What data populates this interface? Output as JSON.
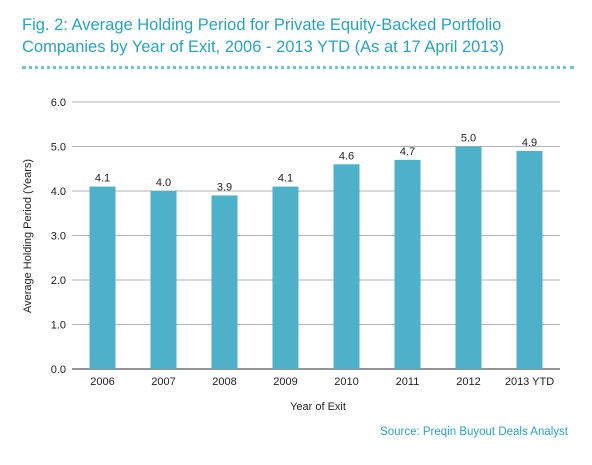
{
  "header": {
    "title_line1": "Fig. 2: Average Holding Period for Private Equity-Backed Portfolio",
    "title_line2": "Companies by Year of Exit, 2006 - 2013 YTD (As at 17 April 2013)"
  },
  "footer": {
    "source": "Source: Preqin Buyout Deals Analyst"
  },
  "colors": {
    "bar": "#4eb1c9",
    "accent": "#2aa3bf"
  },
  "chart_data": {
    "type": "bar",
    "categories": [
      "2006",
      "2007",
      "2008",
      "2009",
      "2010",
      "2011",
      "2012",
      "2013 YTD"
    ],
    "values": [
      4.1,
      4.0,
      3.9,
      4.1,
      4.6,
      4.7,
      5.0,
      4.9
    ],
    "value_labels": [
      "4.1",
      "4.0",
      "3.9",
      "4.1",
      "4.6",
      "4.7",
      "5.0",
      "4.9"
    ],
    "xlabel": "Year of Exit",
    "ylabel": "Average Holding Period (Years)",
    "ylim": [
      0,
      6
    ],
    "yticks": [
      "0.0",
      "1.0",
      "2.0",
      "3.0",
      "4.0",
      "5.0",
      "6.0"
    ],
    "grid": true
  }
}
